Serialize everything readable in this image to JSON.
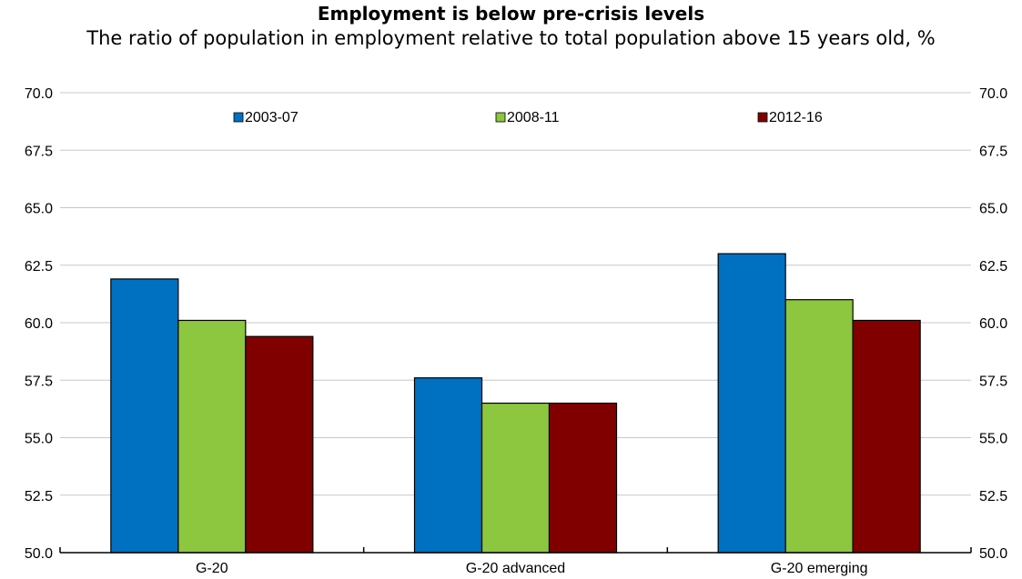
{
  "chart_data": {
    "type": "bar",
    "title": "Employment is below pre-crisis levels",
    "subtitle": "The ratio of population in employment relative to total population above 15 years old, %",
    "categories": [
      "G-20",
      "G-20 advanced",
      "G-20 emerging"
    ],
    "series": [
      {
        "name": "2003-07",
        "color": "#0070C0",
        "values": [
          61.9,
          57.6,
          63.0
        ]
      },
      {
        "name": "2008-11",
        "color": "#8DC63F",
        "values": [
          60.1,
          56.5,
          61.0
        ]
      },
      {
        "name": "2012-16",
        "color": "#800000",
        "values": [
          59.4,
          56.5,
          60.1
        ]
      }
    ],
    "ylim": [
      50,
      70
    ],
    "yticks": [
      "50.0",
      "52.5",
      "55.0",
      "57.5",
      "60.0",
      "62.5",
      "65.0",
      "67.5",
      "70.0"
    ],
    "ytick_values": [
      50,
      52.5,
      55,
      57.5,
      60,
      62.5,
      65,
      67.5,
      70
    ],
    "grid": true,
    "legend_position": "top",
    "secondary_axis": "right (mirrors left)"
  }
}
